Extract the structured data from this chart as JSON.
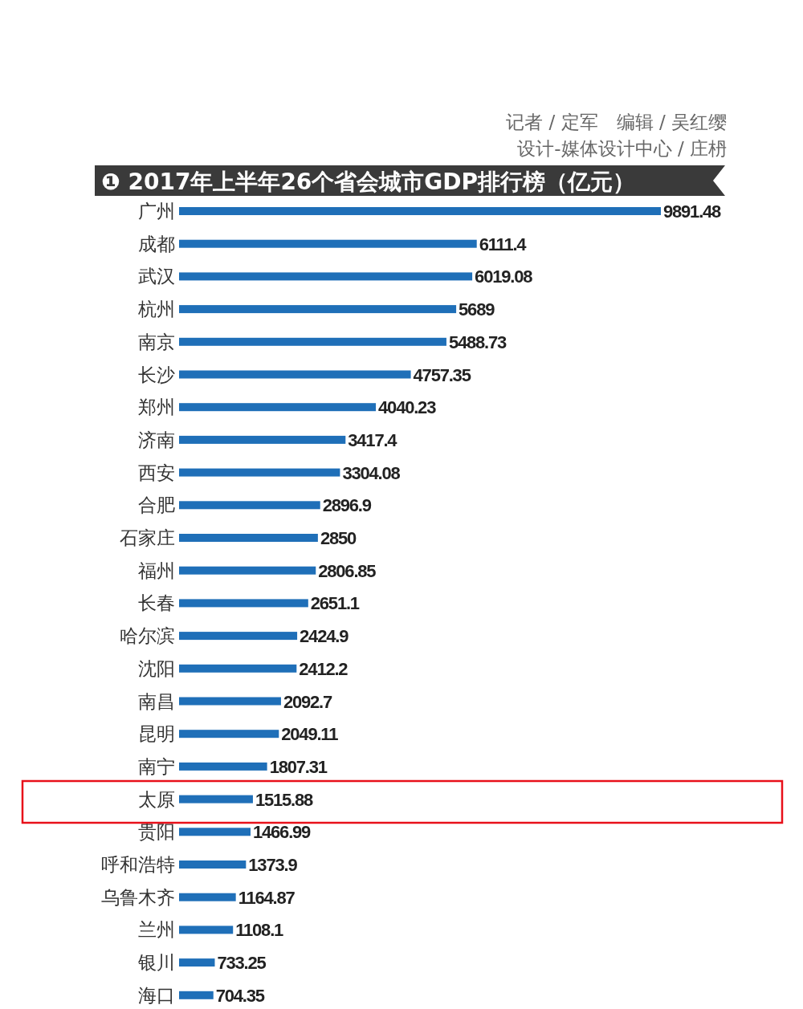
{
  "chart_data": {
    "type": "bar",
    "orientation": "horizontal",
    "title": "❶ 2017年上半年26个省会城市GDP排行榜（亿元）",
    "annotations": [
      "记者 / 定军　编辑 / 吴红缨",
      "设计-媒体设计中心 / 庄枬"
    ],
    "categories": [
      "广州",
      "成都",
      "武汉",
      "杭州",
      "南京",
      "长沙",
      "郑州",
      "济南",
      "西安",
      "合肥",
      "石家庄",
      "福州",
      "长春",
      "哈尔滨",
      "沈阳",
      "南昌",
      "昆明",
      "南宁",
      "太原",
      "贵阳",
      "呼和浩特",
      "乌鲁木齐",
      "兰州",
      "银川",
      "海口"
    ],
    "values": [
      9891.48,
      6111.4,
      6019.08,
      5689,
      5488.73,
      4757.35,
      4040.23,
      3417.4,
      3304.08,
      2896.9,
      2850,
      2806.85,
      2651.1,
      2424.9,
      2412.2,
      2092.7,
      2049.11,
      1807.31,
      1515.88,
      1466.99,
      1373.9,
      1164.87,
      1108.1,
      733.25,
      704.35
    ],
    "color": "#1f6fb8",
    "relative": false,
    "data_labels": true,
    "grid": false,
    "legend": false
  }
}
